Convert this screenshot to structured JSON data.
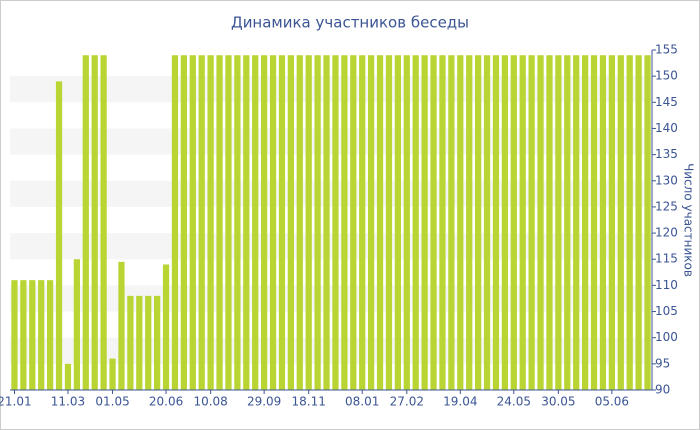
{
  "chart_data": {
    "type": "bar",
    "title": "Динамика участников беседы",
    "y_axis_label": "Число участников",
    "categories": [
      "21.01",
      null,
      null,
      null,
      null,
      null,
      "11.03",
      null,
      null,
      null,
      null,
      "01.05",
      null,
      null,
      null,
      null,
      null,
      "20.06",
      null,
      null,
      null,
      null,
      "10.08",
      null,
      null,
      null,
      null,
      null,
      "29.09",
      null,
      null,
      null,
      null,
      "18.11",
      null,
      null,
      null,
      null,
      null,
      "08.01",
      null,
      null,
      null,
      null,
      "27.02",
      null,
      null,
      null,
      null,
      null,
      "19.04",
      null,
      null,
      null,
      null,
      null,
      "24.05",
      null,
      null,
      null,
      null,
      "30.05",
      null,
      null,
      null,
      null,
      null,
      "05.06",
      null,
      null,
      null,
      null
    ],
    "values": [
      111,
      111,
      111,
      111,
      111,
      149,
      95,
      115,
      154,
      154,
      154,
      96,
      114.5,
      108,
      108,
      108,
      108,
      114,
      154,
      154,
      154,
      154,
      154,
      154,
      154,
      154,
      154,
      154,
      154,
      154,
      154,
      154,
      154,
      154,
      154,
      154,
      154,
      154,
      154,
      154,
      154,
      154,
      154,
      154,
      154,
      154,
      154,
      154,
      154,
      154,
      154,
      154,
      154,
      154,
      154,
      154,
      154,
      154,
      154,
      154,
      154,
      154,
      154,
      154,
      154,
      154,
      154,
      154,
      154,
      154,
      154,
      154
    ],
    "color": "#b8d534",
    "ylim": [
      90,
      155
    ],
    "yticks": [
      90,
      95,
      100,
      105,
      110,
      115,
      120,
      125,
      130,
      135,
      140,
      145,
      150,
      155
    ],
    "grid": true
  }
}
